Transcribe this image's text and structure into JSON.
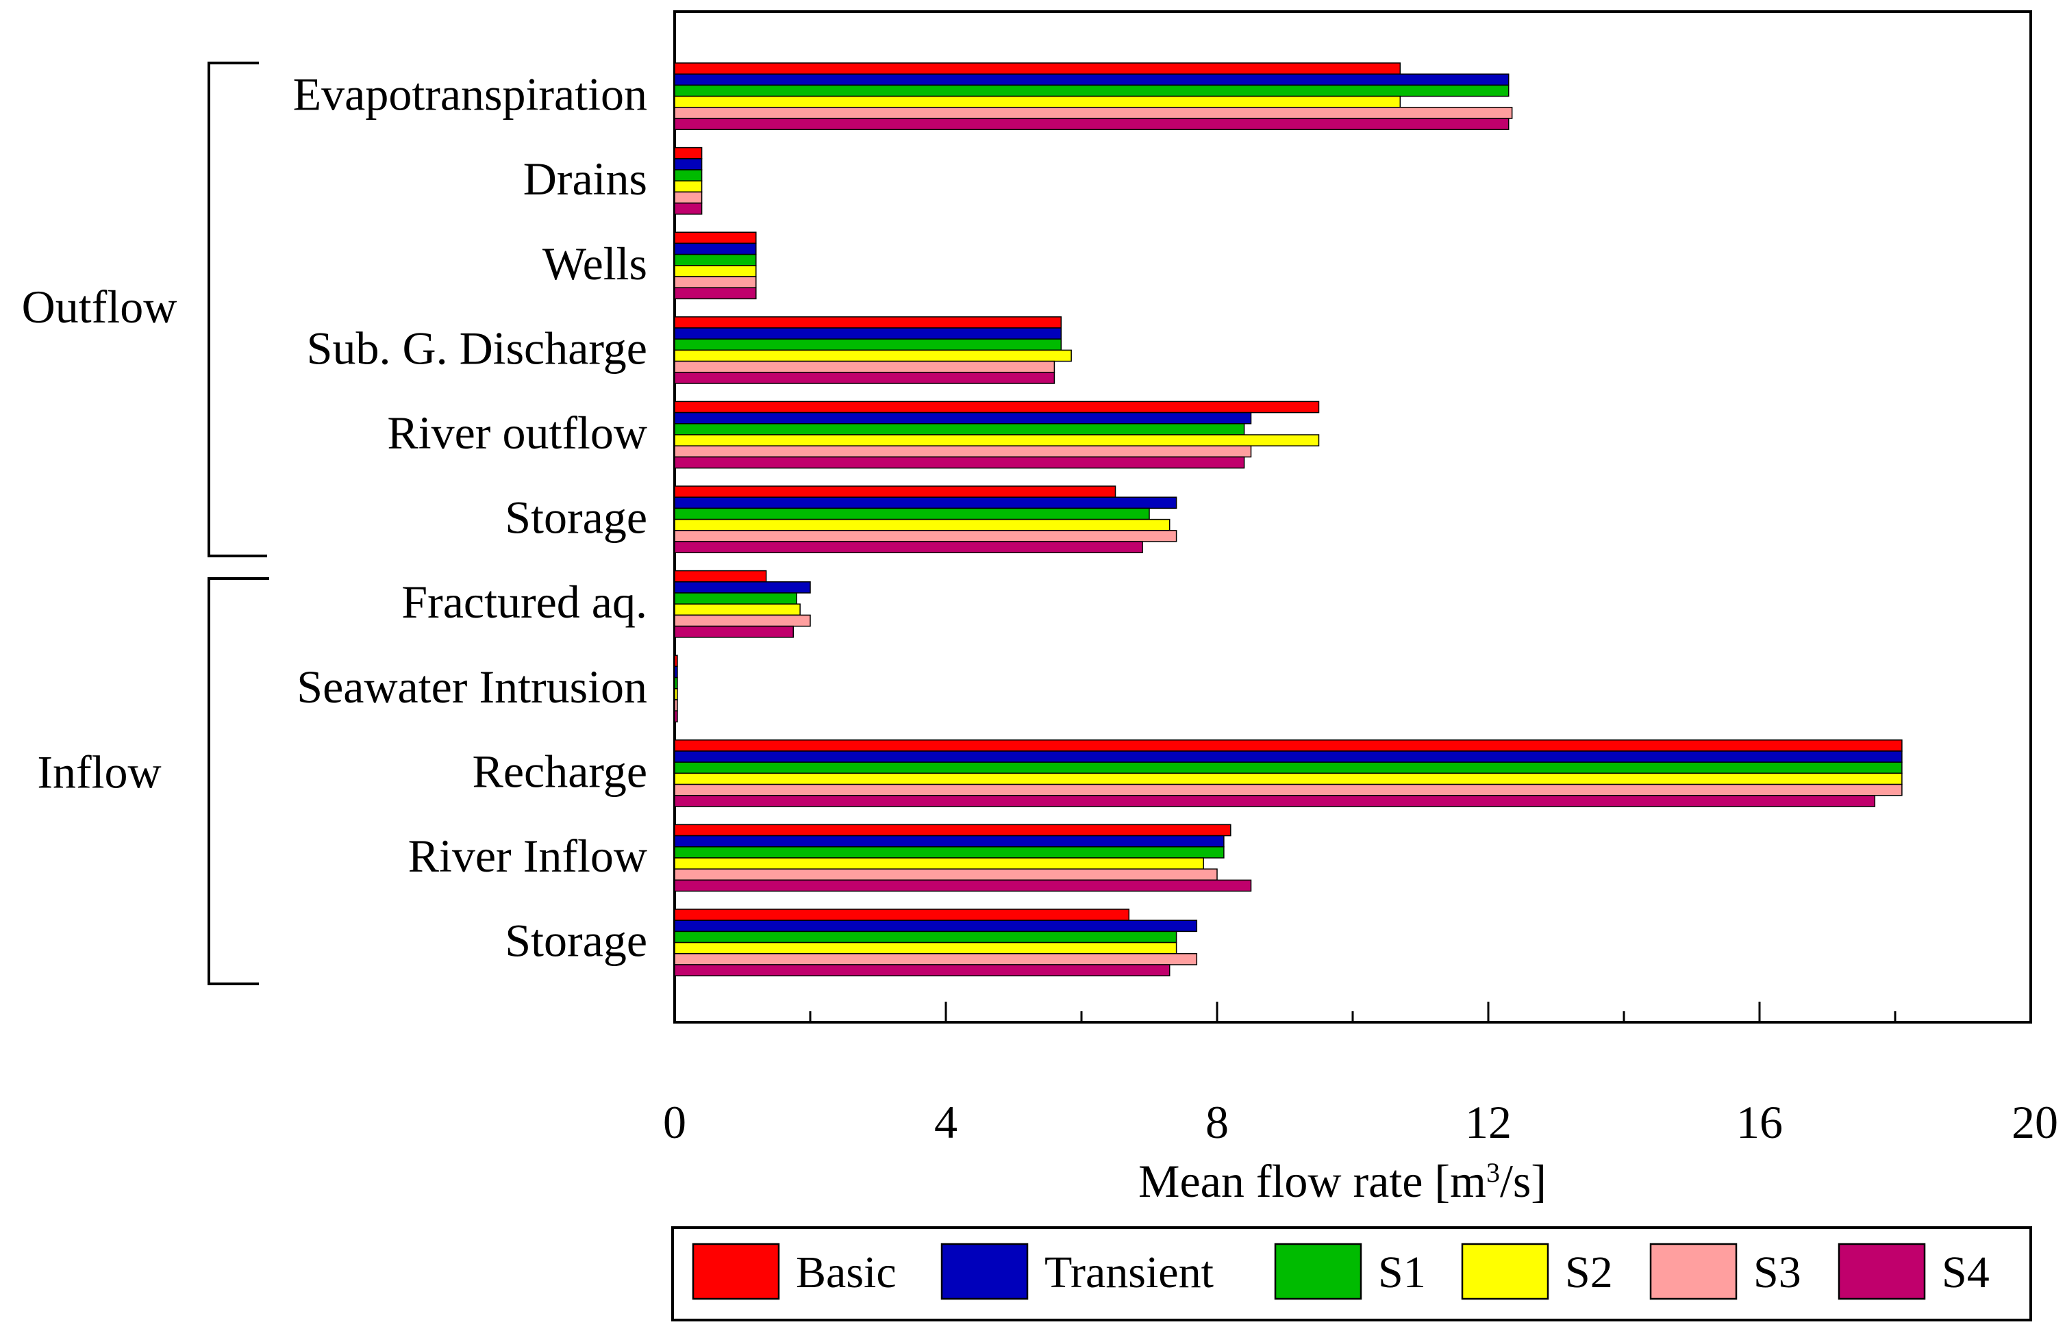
{
  "chart_data": {
    "type": "bar",
    "orientation": "horizontal",
    "title": "",
    "xlabel": "Mean flow rate [m³/s]",
    "xlabel_parts": {
      "before": "Mean flow rate [m",
      "sup": "3",
      "after": "/s]"
    },
    "ylabel": "",
    "xlim": [
      0,
      20
    ],
    "xticks": [
      0,
      4,
      8,
      12,
      16,
      20
    ],
    "xtick_labels": [
      "0",
      "4",
      "8",
      "12",
      "16",
      "20"
    ],
    "minor_ticks": [
      2,
      6,
      10,
      14,
      18
    ],
    "grid": false,
    "legend_position": "bottom",
    "categories": [
      "Evapotranspiration",
      "Drains",
      "Wells",
      "Sub. G. Discharge",
      "River outflow",
      "Storage",
      "Fractured aq.",
      "Seawater Intrusion",
      "Recharge",
      "River Inflow",
      "Storage"
    ],
    "groups": [
      {
        "label": "Outflow",
        "from_index": 0,
        "to_index": 5
      },
      {
        "label": "Inflow",
        "from_index": 6,
        "to_index": 10
      }
    ],
    "series": [
      {
        "name": "Basic",
        "color": "#ff0000",
        "values": [
          10.7,
          0.4,
          1.2,
          5.7,
          9.5,
          6.5,
          1.35,
          0.04,
          18.1,
          8.2,
          6.7
        ]
      },
      {
        "name": "Transient",
        "color": "#0000bb",
        "values": [
          12.3,
          0.4,
          1.2,
          5.7,
          8.5,
          7.4,
          2.0,
          0.04,
          18.1,
          8.1,
          7.7
        ]
      },
      {
        "name": "S1",
        "color": "#00bb00",
        "values": [
          12.3,
          0.4,
          1.2,
          5.7,
          8.4,
          7.0,
          1.8,
          0.04,
          18.1,
          8.1,
          7.4
        ]
      },
      {
        "name": "S2",
        "color": "#ffff00",
        "values": [
          10.7,
          0.4,
          1.2,
          5.85,
          9.5,
          7.3,
          1.85,
          0.04,
          18.1,
          7.8,
          7.4
        ]
      },
      {
        "name": "S3",
        "color": "#ff9f9f",
        "values": [
          12.35,
          0.4,
          1.2,
          5.6,
          8.5,
          7.4,
          2.0,
          0.04,
          18.1,
          8.0,
          7.7
        ]
      },
      {
        "name": "S4",
        "color": "#c0006c",
        "values": [
          12.3,
          0.4,
          1.2,
          5.6,
          8.4,
          6.9,
          1.75,
          0.04,
          17.7,
          8.5,
          7.3
        ]
      }
    ]
  }
}
